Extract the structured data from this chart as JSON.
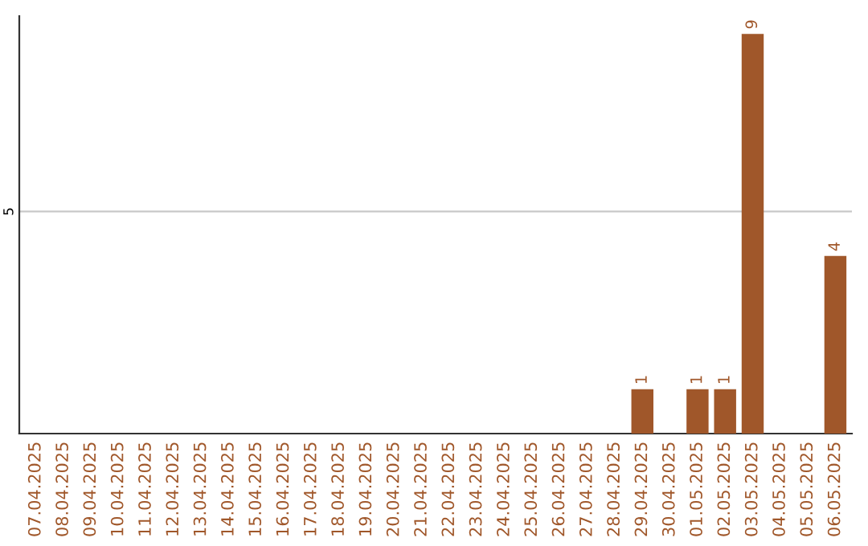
{
  "chart_data": {
    "type": "bar",
    "categories": [
      "07.04.2025",
      "08.04.2025",
      "09.04.2025",
      "10.04.2025",
      "11.04.2025",
      "12.04.2025",
      "13.04.2025",
      "14.04.2025",
      "15.04.2025",
      "16.04.2025",
      "17.04.2025",
      "18.04.2025",
      "19.04.2025",
      "20.04.2025",
      "21.04.2025",
      "22.04.2025",
      "23.04.2025",
      "24.04.2025",
      "25.04.2025",
      "26.04.2025",
      "27.04.2025",
      "28.04.2025",
      "29.04.2025",
      "30.04.2025",
      "01.05.2025",
      "02.05.2025",
      "03.05.2025",
      "04.05.2025",
      "05.05.2025",
      "06.05.2025"
    ],
    "values": [
      null,
      null,
      null,
      null,
      null,
      null,
      null,
      null,
      null,
      null,
      null,
      null,
      null,
      null,
      null,
      null,
      null,
      null,
      null,
      null,
      null,
      null,
      1,
      null,
      1,
      1,
      9,
      null,
      null,
      4
    ],
    "data_labels": true,
    "color": "#a0572a",
    "ylim": [
      0,
      9.4
    ],
    "ref_lines": [
      {
        "axis": "y",
        "value": 5,
        "label": "5",
        "color": "#c8c8c8"
      }
    ]
  }
}
